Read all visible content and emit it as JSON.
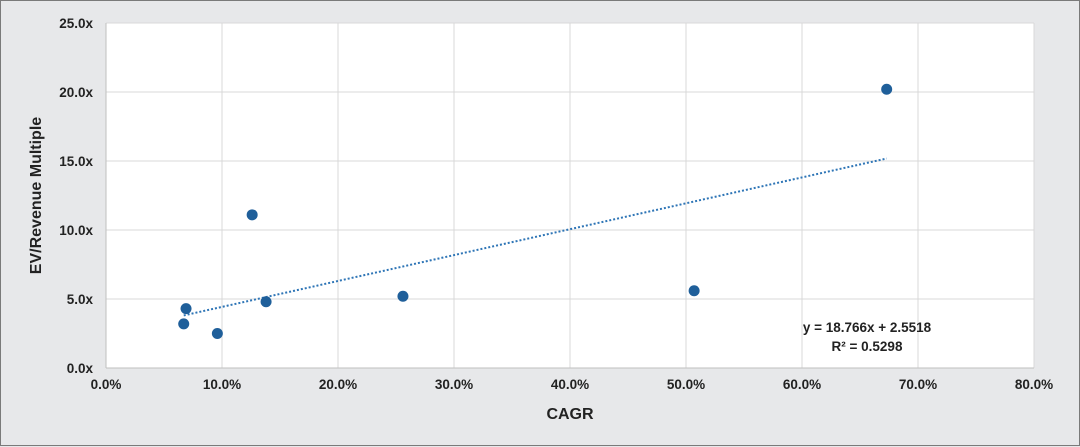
{
  "chart_data": {
    "type": "scatter",
    "xlabel": "CAGR",
    "ylabel": "EV/Revenue Multiple",
    "xlim": [
      0,
      0.8
    ],
    "ylim": [
      0,
      25
    ],
    "x_ticks": [
      0,
      0.1,
      0.2,
      0.3,
      0.4,
      0.5,
      0.6,
      0.7,
      0.8
    ],
    "x_tick_labels": [
      "0.0%",
      "10.0%",
      "20.0%",
      "30.0%",
      "40.0%",
      "50.0%",
      "60.0%",
      "70.0%",
      "80.0%"
    ],
    "y_ticks": [
      0,
      5,
      10,
      15,
      20,
      25
    ],
    "y_tick_labels": [
      "0.0x",
      "5.0x",
      "10.0x",
      "15.0x",
      "20.0x",
      "25.0x"
    ],
    "grid": true,
    "series": [
      {
        "color": "#1f5f9a",
        "points": [
          {
            "x": 0.067,
            "y": 3.2
          },
          {
            "x": 0.069,
            "y": 4.3
          },
          {
            "x": 0.096,
            "y": 2.5
          },
          {
            "x": 0.126,
            "y": 11.1
          },
          {
            "x": 0.138,
            "y": 4.8
          },
          {
            "x": 0.256,
            "y": 5.2
          },
          {
            "x": 0.507,
            "y": 5.6
          },
          {
            "x": 0.673,
            "y": 20.2
          }
        ]
      }
    ],
    "trendline": {
      "type": "linear",
      "slope": 18.766,
      "intercept": 2.5518,
      "x_range": [
        0.067,
        0.673
      ],
      "style": "dotted",
      "color": "#2e75b6",
      "equation_label": "y = 18.766x + 2.5518",
      "r2_label": "R² = 0.5298"
    },
    "colors": {
      "grid": "#d9d9d9",
      "plot_bg": "#ffffff",
      "axis": "#bfbfbf"
    }
  }
}
